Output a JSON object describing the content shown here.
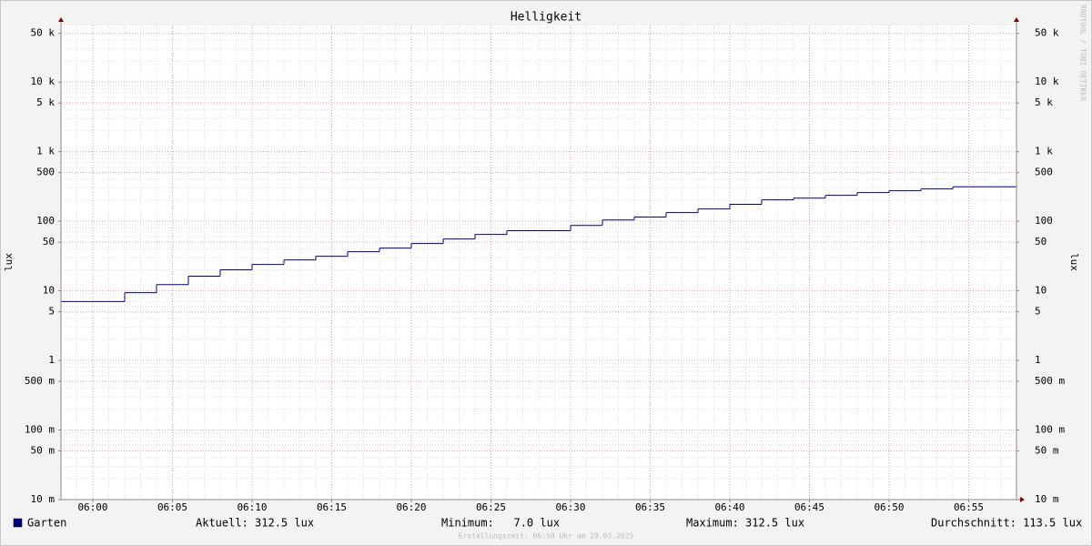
{
  "chart_data": {
    "type": "step",
    "title": "Helligkeit",
    "y_label": "lux",
    "watermark": "RRDTOOL / TOBI OETIKER",
    "footer": "Erstellungszeit: 06:58 Uhr am 29.03.2025",
    "log_scale": true,
    "grid": true,
    "xlim": [
      "05:58",
      "06:58"
    ],
    "xticks": [
      "06:00",
      "06:05",
      "06:10",
      "06:15",
      "06:20",
      "06:25",
      "06:30",
      "06:35",
      "06:40",
      "06:45",
      "06:50",
      "06:55"
    ],
    "ylim": [
      0.01,
      65000
    ],
    "yticks": [
      {
        "value": 0.01,
        "label": "10 m"
      },
      {
        "value": 0.05,
        "label": "50 m"
      },
      {
        "value": 0.1,
        "label": "100 m"
      },
      {
        "value": 0.5,
        "label": "500 m"
      },
      1,
      5,
      10,
      50,
      100,
      500,
      {
        "value": 1000,
        "label": "1 k"
      },
      {
        "value": 5000,
        "label": "5 k"
      },
      {
        "value": 10000,
        "label": "10 k"
      },
      {
        "value": 50000,
        "label": "50 k"
      }
    ],
    "x": [
      "05:58",
      "06:02",
      "06:04",
      "06:06",
      "06:08",
      "06:10",
      "06:12",
      "06:14",
      "06:16",
      "06:18",
      "06:20",
      "06:22",
      "06:24",
      "06:26",
      "06:30",
      "06:32",
      "06:34",
      "06:36",
      "06:38",
      "06:40",
      "06:42",
      "06:44",
      "06:46",
      "06:48",
      "06:50",
      "06:52",
      "06:54"
    ],
    "series": [
      {
        "name": "Garten",
        "color": "#000080",
        "values": [
          7.0,
          9.4,
          12.3,
          16.2,
          20.0,
          23.9,
          27.8,
          31.4,
          36.5,
          41.1,
          47.8,
          55.6,
          64.6,
          73,
          87,
          104,
          115,
          133,
          150,
          175,
          203,
          215,
          236,
          258,
          274,
          291,
          312.5
        ]
      }
    ],
    "stats": [
      "Aktuell: 312.5 lux",
      "Minimum:   7.0 lux",
      "Maximum: 312.5 lux",
      "Durchschnitt: 113.5 lux"
    ]
  }
}
